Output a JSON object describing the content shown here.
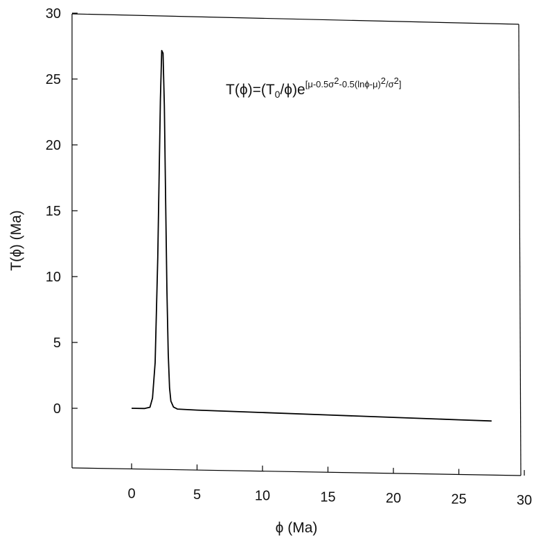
{
  "chart_data": {
    "type": "line",
    "title": "",
    "xlabel": "ϕ (Ma)",
    "ylabel": "T(ϕ) (Ma)",
    "xlim": [
      -4.6,
      30
    ],
    "ylim": [
      -4.6,
      30
    ],
    "xticks": [
      0,
      5,
      10,
      15,
      20,
      25,
      30
    ],
    "yticks": [
      0,
      5,
      10,
      15,
      20,
      25,
      30
    ],
    "grid": false,
    "legend": "none",
    "line_color": "#000000",
    "annotation": {
      "t1": "T(ϕ)=(T",
      "t2": "0",
      "t3": "/ϕ)e",
      "t4": "[μ-0.5σ",
      "t5": "2",
      "t6": "-0.5(lnϕ-μ)",
      "t7": "2",
      "t8": "/σ",
      "t9": "2",
      "t10": "]"
    },
    "series": [
      {
        "x": [
          0,
          1.0,
          1.4,
          1.6,
          1.8,
          2.0,
          2.1,
          2.2,
          2.3,
          2.4,
          2.5,
          2.6,
          2.7,
          2.8,
          2.9,
          3.0,
          3.2,
          3.5,
          5,
          10,
          15,
          20,
          25,
          27.5
        ],
        "y": [
          0,
          0,
          0.1,
          0.8,
          3.5,
          11.5,
          17.5,
          23.5,
          27.2,
          27.0,
          23.0,
          16.0,
          9.0,
          4.2,
          1.6,
          0.6,
          0.15,
          0,
          -0.05,
          -0.15,
          -0.25,
          -0.35,
          -0.45,
          -0.5
        ]
      }
    ]
  }
}
